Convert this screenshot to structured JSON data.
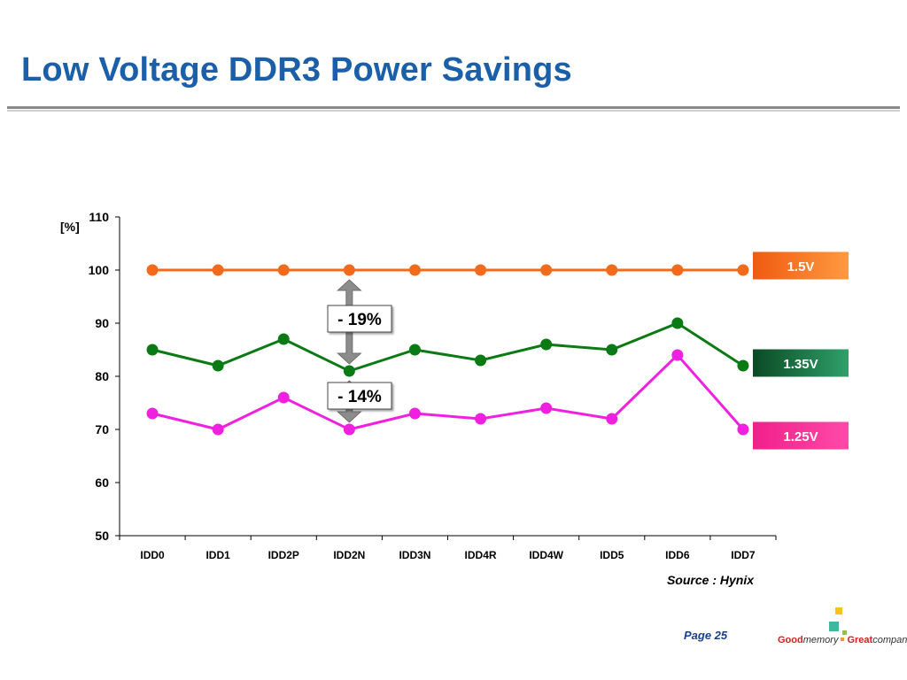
{
  "slide": {
    "title": "Low Voltage DDR3 Power Savings",
    "page_label": "Page 25",
    "slogan": {
      "good": "Good",
      "memory": "memory",
      "great": "Great",
      "company": "company"
    }
  },
  "colors": {
    "title": "#1a5fa8",
    "series_1_5v": "#f26a1b",
    "series_1_35v": "#0a7a14",
    "series_1_25v": "#f020e0",
    "arrow": "#8c8c8c",
    "logo_yellow": "#f5c518",
    "logo_teal": "#3fb8a0",
    "logo_green": "#8cc63f"
  },
  "chart_data": {
    "type": "line",
    "title": "",
    "ylabel": "[%]",
    "xlabel": "",
    "ylim": [
      50,
      110
    ],
    "yticks": [
      50,
      60,
      70,
      80,
      90,
      100,
      110
    ],
    "categories": [
      "IDD0",
      "IDD1",
      "IDD2P",
      "IDD2N",
      "IDD3N",
      "IDD4R",
      "IDD4W",
      "IDD5",
      "IDD6",
      "IDD7"
    ],
    "series": [
      {
        "name": "1.5V",
        "color": "#f26a1b",
        "values": [
          100,
          100,
          100,
          100,
          100,
          100,
          100,
          100,
          100,
          100
        ]
      },
      {
        "name": "1.35V",
        "color": "#0a7a14",
        "values": [
          85,
          82,
          87,
          81,
          85,
          83,
          86,
          85,
          90,
          82
        ]
      },
      {
        "name": "1.25V",
        "color": "#f020e0",
        "values": [
          73,
          70,
          76,
          70,
          73,
          72,
          74,
          72,
          84,
          70
        ]
      }
    ],
    "legend": [
      {
        "label": "1.5V",
        "series": 0
      },
      {
        "label": "1.35V",
        "series": 1
      },
      {
        "label": "1.25V",
        "series": 2
      }
    ],
    "annotations": [
      {
        "text": "- 19%",
        "category": "IDD2N",
        "from": 100,
        "to": 81
      },
      {
        "text": "- 14%",
        "category": "IDD2N",
        "from": 81,
        "to": 70
      }
    ],
    "source": "Source : Hynix"
  }
}
